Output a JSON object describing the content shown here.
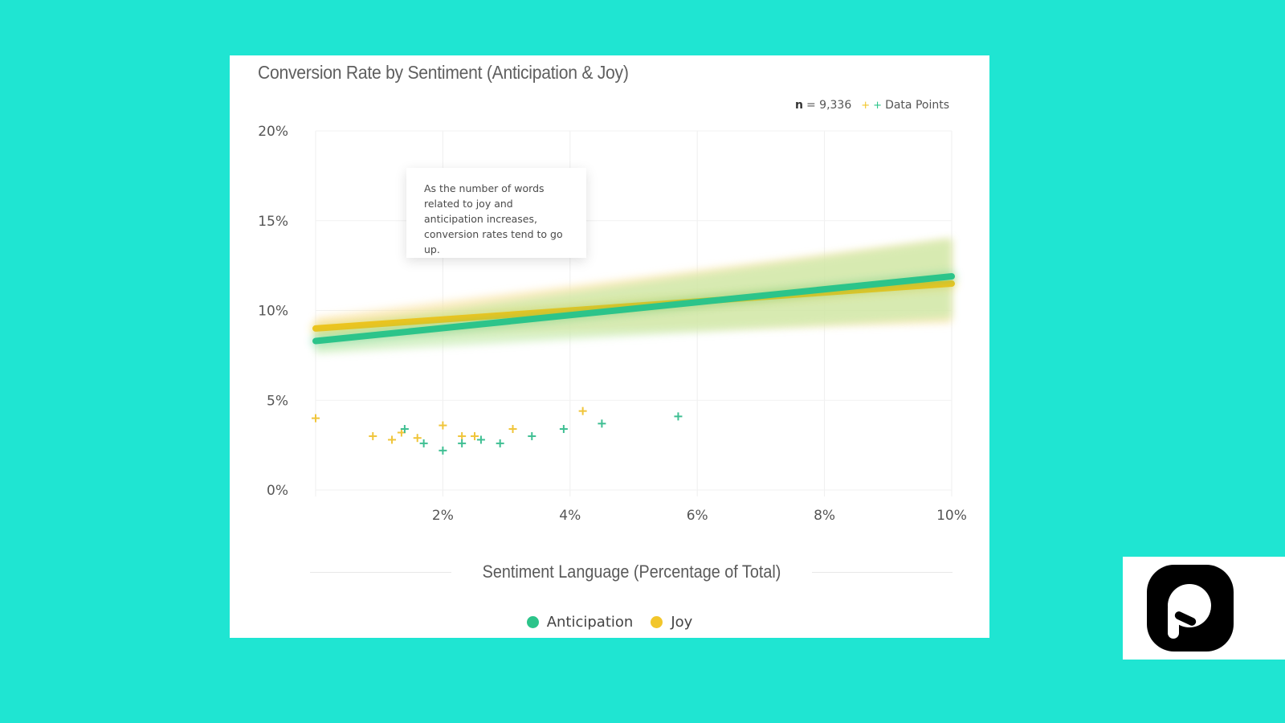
{
  "page": {
    "background_color": "#1fe5d2"
  },
  "card": {
    "title": "Conversion Rate by Sentiment (Anticipation & Joy)",
    "meta": {
      "n_label": "n",
      "n_value": "= 9,336",
      "data_points_label": "Data Points",
      "data_points_icon": "plus-markers-icon"
    },
    "annotation": "As the number of words related to joy and anticipation increases, conversion rates tend to go up.",
    "x_axis_label": "Sentiment Language (Percentage of Total)",
    "legend": [
      {
        "label": "Anticipation",
        "color": "#2cc48a"
      },
      {
        "label": "Joy",
        "color": "#f2c62b"
      }
    ]
  },
  "logo": {
    "icon": "brand-p-logo-icon"
  },
  "chart_data": {
    "type": "scatter",
    "title": "Conversion Rate by Sentiment (Anticipation & Joy)",
    "xlabel": "Sentiment Language (Percentage of Total)",
    "ylabel": "",
    "xlim": [
      0,
      10
    ],
    "ylim": [
      0,
      20
    ],
    "x_ticks": [
      "2%",
      "4%",
      "6%",
      "8%",
      "10%"
    ],
    "y_ticks": [
      "0%",
      "5%",
      "10%",
      "15%",
      "20%"
    ],
    "grid": true,
    "legend_position": "bottom",
    "annotations": [
      "n = 9,336",
      "As the number of words related to joy and anticipation increases, conversion rates tend to go up."
    ],
    "series": [
      {
        "name": "Anticipation",
        "color": "#2cc48a",
        "trend_line": {
          "x": [
            0,
            10
          ],
          "y": [
            8.3,
            11.9
          ]
        },
        "confidence_band": {
          "x": [
            0,
            10
          ],
          "lower": [
            7.6,
            9.6
          ],
          "upper": [
            9.0,
            14.0
          ]
        },
        "points": [
          {
            "x": 1.4,
            "y": 3.4
          },
          {
            "x": 1.7,
            "y": 2.6
          },
          {
            "x": 2.0,
            "y": 2.2
          },
          {
            "x": 2.3,
            "y": 2.6
          },
          {
            "x": 2.6,
            "y": 2.8
          },
          {
            "x": 2.9,
            "y": 2.6
          },
          {
            "x": 3.4,
            "y": 3.0
          },
          {
            "x": 3.9,
            "y": 3.4
          },
          {
            "x": 4.5,
            "y": 3.7
          },
          {
            "x": 5.7,
            "y": 4.1
          }
        ]
      },
      {
        "name": "Joy",
        "color": "#f2c62b",
        "trend_line": {
          "x": [
            0,
            10
          ],
          "y": [
            9.0,
            11.5
          ]
        },
        "confidence_band": {
          "x": [
            0,
            10
          ],
          "lower": [
            8.5,
            9.3
          ],
          "upper": [
            9.6,
            14.0
          ]
        },
        "points": [
          {
            "x": 0.0,
            "y": 4.0
          },
          {
            "x": 0.9,
            "y": 3.0
          },
          {
            "x": 1.2,
            "y": 2.8
          },
          {
            "x": 1.35,
            "y": 3.2
          },
          {
            "x": 1.6,
            "y": 2.9
          },
          {
            "x": 2.0,
            "y": 3.6
          },
          {
            "x": 2.3,
            "y": 3.0
          },
          {
            "x": 2.5,
            "y": 3.0
          },
          {
            "x": 3.1,
            "y": 3.4
          },
          {
            "x": 4.2,
            "y": 4.4
          }
        ]
      }
    ]
  }
}
